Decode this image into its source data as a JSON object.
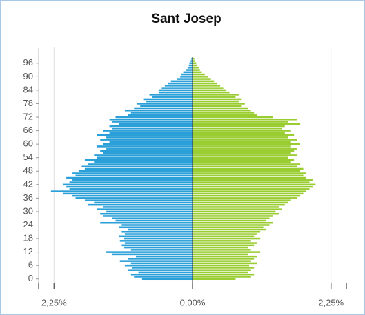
{
  "chart_data": {
    "type": "pyramid",
    "title": "Sant Josep",
    "y": [
      0,
      1,
      2,
      3,
      4,
      5,
      6,
      7,
      8,
      9,
      10,
      11,
      12,
      13,
      14,
      15,
      16,
      17,
      18,
      19,
      20,
      21,
      22,
      23,
      24,
      25,
      26,
      27,
      28,
      29,
      30,
      31,
      32,
      33,
      34,
      35,
      36,
      37,
      38,
      39,
      40,
      41,
      42,
      43,
      44,
      45,
      46,
      47,
      48,
      49,
      50,
      51,
      52,
      53,
      54,
      55,
      56,
      57,
      58,
      59,
      60,
      61,
      62,
      63,
      64,
      65,
      66,
      67,
      68,
      69,
      70,
      71,
      72,
      73,
      74,
      75,
      76,
      77,
      78,
      79,
      80,
      81,
      82,
      83,
      84,
      85,
      86,
      87,
      88,
      89,
      90,
      91,
      92,
      93,
      94,
      95,
      96,
      97,
      98
    ],
    "ylim": [
      -1,
      99
    ],
    "yticks": [
      0,
      6,
      12,
      18,
      24,
      30,
      36,
      42,
      48,
      54,
      60,
      66,
      72,
      78,
      84,
      90,
      96
    ],
    "xlim": [
      -2.5,
      2.5
    ],
    "xticks": [
      {
        "value": -2.25,
        "label": "2,25%"
      },
      {
        "value": 0,
        "label": "0,00%"
      },
      {
        "value": 2.25,
        "label": "2,25%"
      }
    ],
    "grid": true,
    "series": [
      {
        "color": "#2a9fd8",
        "values": [
          -0.82,
          -0.95,
          -1.0,
          -0.88,
          -1.05,
          -0.98,
          -1.1,
          -1.0,
          -1.18,
          -1.05,
          -0.92,
          -1.3,
          -1.4,
          -1.0,
          -1.12,
          -1.15,
          -1.1,
          -1.18,
          -1.12,
          -1.2,
          -1.1,
          -1.15,
          -1.05,
          -1.2,
          -1.15,
          -1.5,
          -1.25,
          -1.3,
          -1.45,
          -1.5,
          -1.4,
          -1.55,
          -1.45,
          -1.7,
          -1.6,
          -1.75,
          -1.9,
          -1.95,
          -2.1,
          -2.3,
          -2.0,
          -2.05,
          -2.1,
          -2.0,
          -1.95,
          -2.05,
          -1.9,
          -1.95,
          -1.85,
          -1.75,
          -1.8,
          -1.7,
          -1.6,
          -1.75,
          -1.55,
          -1.6,
          -1.45,
          -1.5,
          -1.4,
          -1.55,
          -1.45,
          -1.35,
          -1.5,
          -1.4,
          -1.55,
          -1.35,
          -1.45,
          -1.3,
          -1.35,
          -1.2,
          -1.3,
          -1.35,
          -1.25,
          -1.05,
          -1.0,
          -1.1,
          -0.95,
          -0.85,
          -0.9,
          -0.75,
          -0.8,
          -0.65,
          -0.7,
          -0.55,
          -0.55,
          -0.5,
          -0.45,
          -0.4,
          -0.35,
          -0.25,
          -0.2,
          -0.18,
          -0.15,
          -0.1,
          -0.08,
          -0.06,
          -0.05,
          -0.03,
          -0.02
        ]
      },
      {
        "color": "#9acd32",
        "values": [
          0.7,
          0.95,
          1.0,
          0.9,
          0.95,
          1.0,
          0.92,
          1.05,
          0.95,
          1.0,
          1.05,
          0.9,
          1.1,
          0.95,
          0.9,
          1.0,
          1.05,
          0.95,
          1.1,
          1.0,
          1.05,
          1.1,
          1.2,
          1.15,
          1.25,
          1.3,
          1.2,
          1.25,
          1.3,
          1.4,
          1.35,
          1.45,
          1.4,
          1.5,
          1.55,
          1.6,
          1.7,
          1.75,
          1.8,
          1.85,
          1.9,
          1.95,
          2.0,
          1.9,
          1.95,
          1.85,
          1.8,
          1.85,
          1.75,
          1.8,
          1.7,
          1.75,
          1.6,
          1.65,
          1.55,
          1.7,
          1.6,
          1.65,
          1.7,
          1.6,
          1.75,
          1.6,
          1.7,
          1.55,
          1.65,
          1.5,
          1.6,
          1.45,
          1.5,
          1.75,
          1.55,
          1.7,
          1.3,
          1.05,
          1.0,
          0.95,
          0.9,
          0.8,
          0.85,
          0.75,
          0.8,
          0.7,
          0.75,
          0.6,
          0.55,
          0.5,
          0.45,
          0.4,
          0.35,
          0.3,
          0.25,
          0.2,
          0.15,
          0.12,
          0.1,
          0.08,
          0.06,
          0.04,
          0.03
        ]
      }
    ]
  }
}
